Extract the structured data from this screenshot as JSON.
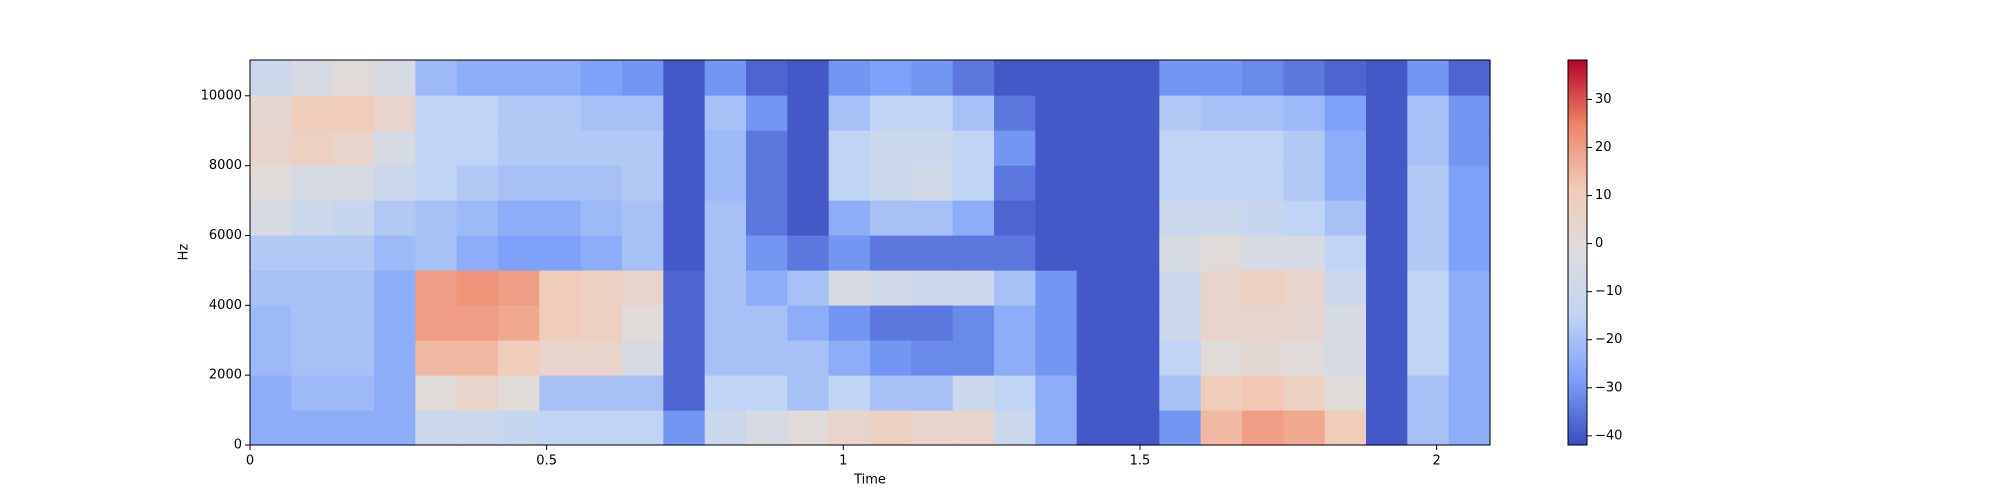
{
  "chart_data": {
    "type": "heatmap",
    "x_label": "Time",
    "y_label": "Hz",
    "xlim": [
      0,
      2.09
    ],
    "xticks": [
      0,
      0.5,
      1,
      1.5,
      2
    ],
    "ylim": [
      0,
      11025
    ],
    "yticks": [
      0,
      2000,
      4000,
      6000,
      8000,
      10000
    ],
    "clim": [
      -41.9,
      38.2
    ],
    "cticks": [
      {
        "value": -40,
        "label": "−40"
      },
      {
        "value": -30,
        "label": "−30"
      },
      {
        "value": -20,
        "label": "−20"
      },
      {
        "value": -10,
        "label": "−10"
      },
      0,
      10,
      20,
      30
    ],
    "colormap": [
      "#3b4cc0",
      "#7b9ff9",
      "#c0d4f5",
      "#dddddd",
      "#f2cbb7",
      "#ee8468",
      "#b40426"
    ],
    "z": [
      [
        -25,
        -25,
        -25,
        -25,
        -10,
        -10,
        -12,
        -15,
        -15,
        -15,
        -30,
        -10,
        -5,
        0,
        5,
        8,
        5,
        5,
        -10,
        -25,
        -40,
        -40,
        -30,
        15,
        20,
        18,
        10,
        -40,
        -20,
        -25
      ],
      [
        -25,
        -22,
        -22,
        -25,
        0,
        5,
        0,
        -20,
        -20,
        -20,
        -38,
        -15,
        -15,
        -20,
        -15,
        -20,
        -20,
        -10,
        -15,
        -25,
        -40,
        -40,
        -20,
        10,
        12,
        8,
        0,
        -40,
        -20,
        -25
      ],
      [
        -22,
        -20,
        -20,
        -25,
        15,
        15,
        10,
        5,
        5,
        -5,
        -38,
        -20,
        -20,
        -20,
        -25,
        -30,
        -32,
        -32,
        -25,
        -30,
        -40,
        -40,
        -15,
        0,
        2,
        0,
        -5,
        -40,
        -15,
        -25
      ],
      [
        -22,
        -20,
        -20,
        -25,
        20,
        20,
        18,
        10,
        8,
        0,
        -38,
        -20,
        -20,
        -25,
        -30,
        -35,
        -35,
        -32,
        -25,
        -30,
        -40,
        -40,
        -10,
        5,
        5,
        3,
        -5,
        -40,
        -15,
        -25
      ],
      [
        -20,
        -20,
        -20,
        -25,
        20,
        22,
        20,
        10,
        8,
        5,
        -38,
        -20,
        -25,
        -20,
        -5,
        -8,
        -10,
        -10,
        -20,
        -30,
        -40,
        -40,
        -10,
        5,
        8,
        5,
        -10,
        -40,
        -15,
        -25
      ],
      [
        -18,
        -18,
        -18,
        -22,
        -20,
        -25,
        -28,
        -28,
        -25,
        -20,
        -40,
        -20,
        -30,
        -35,
        -30,
        -35,
        -35,
        -35,
        -35,
        -40,
        -40,
        -40,
        -5,
        0,
        -5,
        -5,
        -15,
        -40,
        -18,
        -28
      ],
      [
        -5,
        -10,
        -12,
        -18,
        -20,
        -22,
        -25,
        -25,
        -22,
        -20,
        -40,
        -20,
        -35,
        -40,
        -25,
        -20,
        -20,
        -25,
        -38,
        -40,
        -40,
        -40,
        -10,
        -10,
        -12,
        -15,
        -20,
        -40,
        -18,
        -28
      ],
      [
        0,
        -5,
        -5,
        -10,
        -15,
        -18,
        -20,
        -20,
        -20,
        -18,
        -40,
        -22,
        -35,
        -40,
        -15,
        -10,
        -8,
        -15,
        -35,
        -40,
        -40,
        -40,
        -15,
        -15,
        -15,
        -18,
        -25,
        -40,
        -18,
        -28
      ],
      [
        5,
        8,
        5,
        -5,
        -15,
        -15,
        -18,
        -18,
        -18,
        -18,
        -40,
        -22,
        -35,
        -40,
        -15,
        -10,
        -10,
        -15,
        -30,
        -40,
        -40,
        -40,
        -15,
        -15,
        -15,
        -18,
        -25,
        -40,
        -20,
        -30
      ],
      [
        3,
        10,
        10,
        5,
        -15,
        -15,
        -18,
        -18,
        -20,
        -20,
        -40,
        -20,
        -30,
        -40,
        -20,
        -15,
        -15,
        -20,
        -35,
        -40,
        -40,
        -40,
        -18,
        -20,
        -20,
        -22,
        -28,
        -40,
        -20,
        -30
      ],
      [
        -10,
        -5,
        0,
        -5,
        -22,
        -25,
        -25,
        -25,
        -28,
        -30,
        -40,
        -30,
        -38,
        -40,
        -30,
        -28,
        -30,
        -35,
        -40,
        -40,
        -40,
        -40,
        -30,
        -30,
        -32,
        -35,
        -38,
        -40,
        -30,
        -38
      ]
    ]
  }
}
